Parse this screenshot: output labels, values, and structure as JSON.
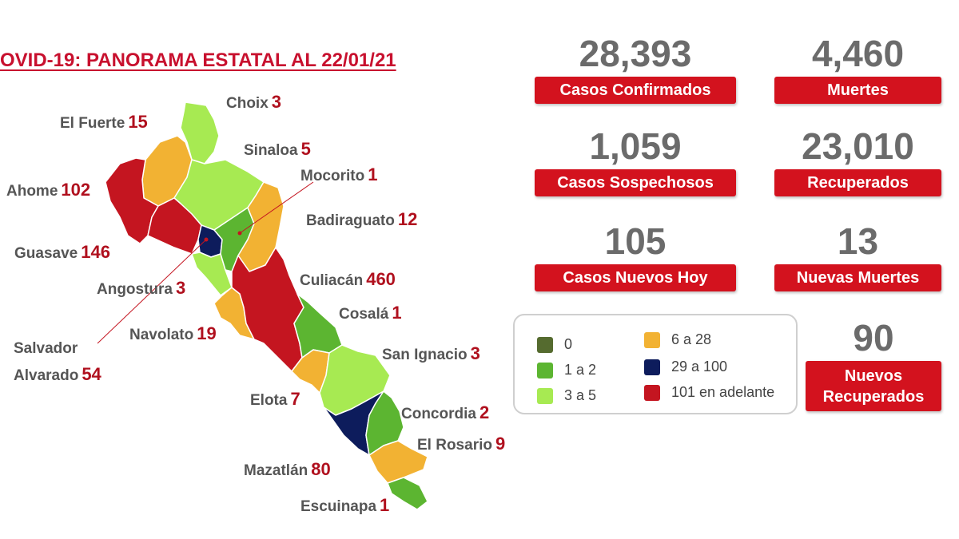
{
  "title": "OVID-19: PANORAMA ESTATAL AL 22/01/21",
  "colors": {
    "zero": "#556b2f",
    "one_two": "#5cb531",
    "three_five": "#a7ea52",
    "six_28": "#f2b233",
    "twentynine_100": "#0d1c5c",
    "over_101": "#c41520",
    "badge_red": "#d3121e",
    "number_red": "#b0101e"
  },
  "municipalities": [
    {
      "name": "Choix",
      "cases": "3"
    },
    {
      "name": "El Fuerte",
      "cases": "15"
    },
    {
      "name": "Sinaloa",
      "cases": "5"
    },
    {
      "name": "Mocorito",
      "cases": "1"
    },
    {
      "name": "Ahome",
      "cases": "102"
    },
    {
      "name": "Badiraguato",
      "cases": "12"
    },
    {
      "name": "Guasave",
      "cases": "146"
    },
    {
      "name": "Culiacán",
      "cases": "460"
    },
    {
      "name": "Angostura",
      "cases": "3"
    },
    {
      "name": "Cosalá",
      "cases": "1"
    },
    {
      "name": "Navolato",
      "cases": "19"
    },
    {
      "name": "San Ignacio",
      "cases": "3"
    },
    {
      "name": "Salvador",
      "name2": "Alvarado",
      "cases": "54"
    },
    {
      "name": "Elota",
      "cases": "7"
    },
    {
      "name": "Concordia",
      "cases": "2"
    },
    {
      "name": "El Rosario",
      "cases": "9"
    },
    {
      "name": "Mazatlán",
      "cases": "80"
    },
    {
      "name": "Escuinapa",
      "cases": "1"
    }
  ],
  "stats": {
    "confirmed": {
      "value": "28,393",
      "label": "Casos Confirmados"
    },
    "deaths": {
      "value": "4,460",
      "label": "Muertes"
    },
    "suspected": {
      "value": "1,059",
      "label": "Casos Sospechosos"
    },
    "recovered": {
      "value": "23,010",
      "label": "Recuperados"
    },
    "new_cases": {
      "value": "105",
      "label": "Casos Nuevos Hoy"
    },
    "new_deaths": {
      "value": "13",
      "label": "Nuevas Muertes"
    },
    "new_recovered": {
      "value": "90",
      "label1": "Nuevos",
      "label2": "Recuperados"
    }
  },
  "legend": [
    {
      "label": "0",
      "color": "#556b2f"
    },
    {
      "label": "1 a 2",
      "color": "#5cb531"
    },
    {
      "label": "3 a 5",
      "color": "#a7ea52"
    },
    {
      "label": "6 a 28",
      "color": "#f2b233"
    },
    {
      "label": "29 a 100",
      "color": "#0d1c5c"
    },
    {
      "label": "101 en adelante",
      "color": "#c41520"
    }
  ]
}
